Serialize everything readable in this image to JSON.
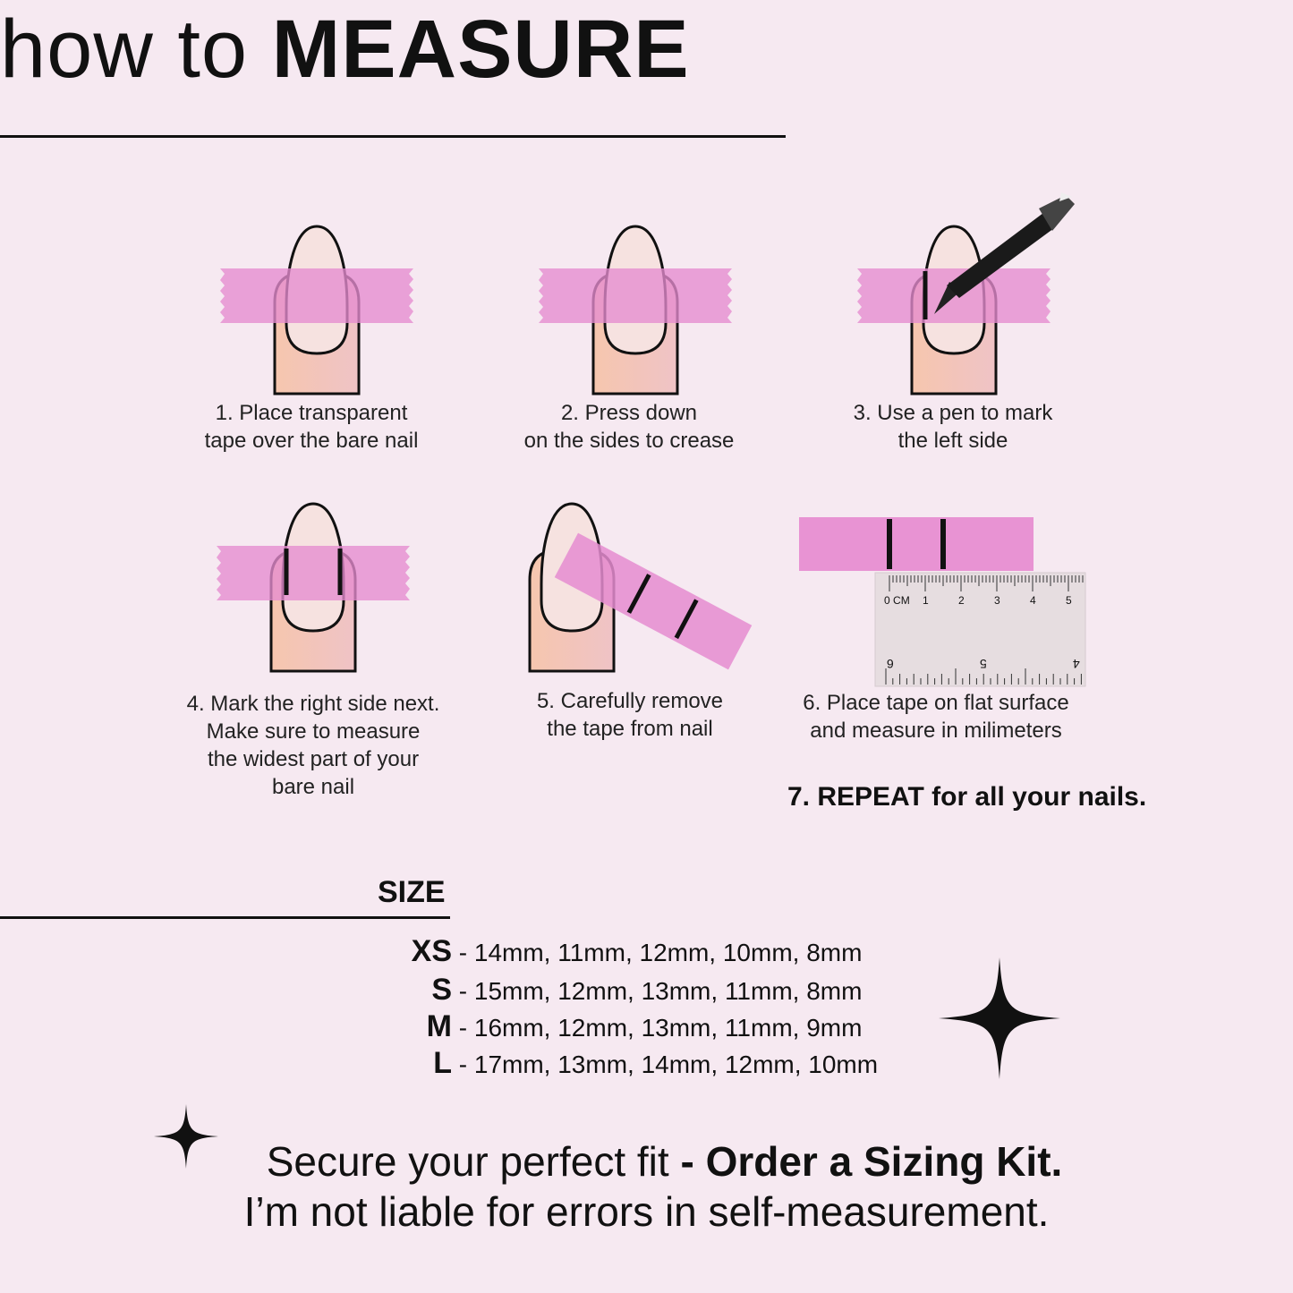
{
  "header": {
    "title_light": "how to ",
    "title_bold": "MEASURE"
  },
  "steps": [
    {
      "line1": "1. Place transparent",
      "line2": "tape over the bare nail"
    },
    {
      "line1": "2. Press down",
      "line2": "on the sides to crease"
    },
    {
      "line1": "3. Use a pen to mark",
      "line2": "the left side"
    },
    {
      "line1": "4. Mark the right side next.",
      "line2": "Make sure to measure",
      "line3": "the widest part of your",
      "line4": "bare nail"
    },
    {
      "line1": "5. Carefully remove",
      "line2": "the tape from nail"
    },
    {
      "line1": "6. Place tape on flat surface",
      "line2": "and measure in milimeters"
    }
  ],
  "repeat": "7. REPEAT for all your nails.",
  "ruler": {
    "unit": "CM",
    "top_ticks": [
      "0",
      "1",
      "2",
      "3",
      "4",
      "5"
    ],
    "bottom_ticks": [
      "6",
      "5",
      "4"
    ]
  },
  "size": {
    "heading": "SIZE",
    "rows": [
      {
        "label": "XS",
        "values": "- 14mm, 11mm, 12mm, 10mm, 8mm"
      },
      {
        "label": "S",
        "values": "- 15mm, 12mm, 13mm, 11mm, 8mm"
      },
      {
        "label": "M",
        "values": "- 16mm, 12mm, 13mm, 11mm, 9mm"
      },
      {
        "label": "L",
        "values": "- 17mm, 13mm, 14mm, 12mm, 10mm"
      }
    ]
  },
  "footer": {
    "line1_regular": "Secure your perfect fit ",
    "line1_bold": "- Order a Sizing Kit.",
    "line2": "I’m not liable for errors in self-measurement."
  },
  "colors": {
    "background": "#f6e9f1",
    "tape": "#e893d3",
    "skin": "#f3c2b2",
    "nail": "#f6e2e0",
    "ink": "#111111"
  },
  "icons": [
    "sparkle-icon",
    "pen-icon",
    "ruler-icon"
  ]
}
